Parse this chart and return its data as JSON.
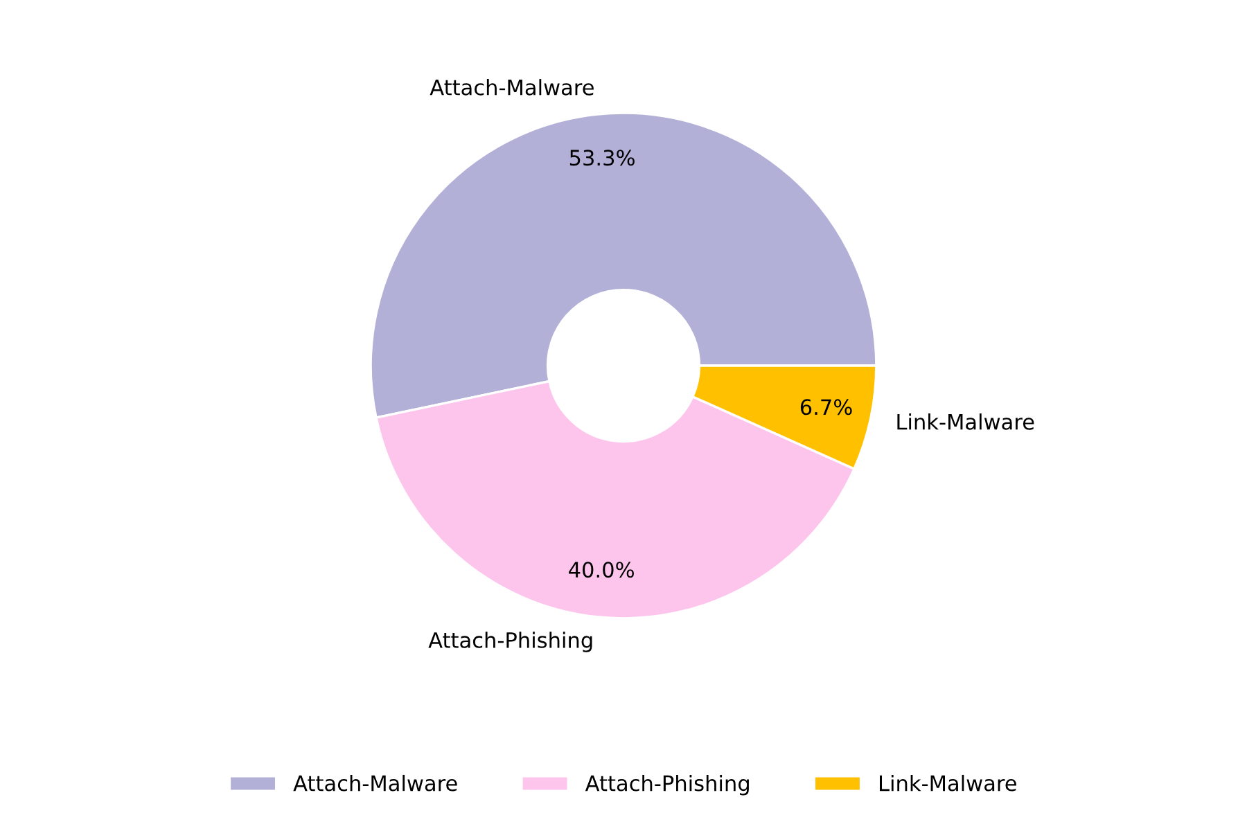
{
  "chart_data": {
    "type": "donut",
    "categories": [
      "Attach-Malware",
      "Attach-Phishing",
      "Link-Malware"
    ],
    "values": [
      53.3,
      40.0,
      6.7
    ],
    "colors": [
      "#b3b0d7",
      "#fdc4ec",
      "#ffc000"
    ],
    "value_labels": [
      "53.3%",
      "40.0%",
      "6.7%"
    ],
    "legend": "bottom"
  }
}
